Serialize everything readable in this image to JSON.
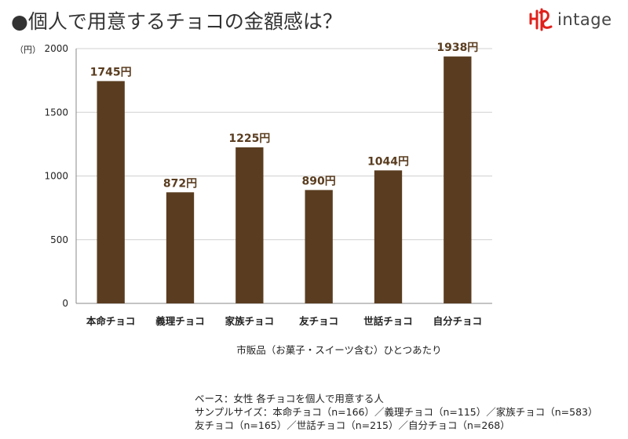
{
  "header": {
    "title": "●個人で用意するチョコの金額感は？",
    "logo_text": "intage"
  },
  "chart_data": {
    "type": "bar",
    "unit_label": "（円）",
    "categories": [
      "本命チョコ",
      "義理チョコ",
      "家族チョコ",
      "友チョコ",
      "世話チョコ",
      "自分チョコ"
    ],
    "values": [
      1745,
      872,
      1225,
      890,
      1044,
      1938
    ],
    "data_labels": [
      "1745円",
      "872円",
      "1225円",
      "890円",
      "1044円",
      "1938円"
    ],
    "xlabel": "市販品（お菓子・スイーツ含む）ひとつあたり",
    "ylim": [
      0,
      2000
    ],
    "yticks": [
      0,
      500,
      1000,
      1500,
      2000
    ],
    "grid": true,
    "bar_color": "#5a3d20",
    "label_color": "#5a3d20"
  },
  "footnote": {
    "line1": "ベース：女性 各チョコを個人で用意する人",
    "line2": "サンプルサイズ：本命チョコ（n=166）／義理チョコ（n=115）／家族チョコ（n=583）",
    "line3": "友チョコ（n=165）／世話チョコ（n=215）／自分チョコ（n=268）"
  },
  "colors": {
    "logo_red": "#e0201b",
    "grid": "#d0d0d0",
    "axis": "#888888"
  }
}
